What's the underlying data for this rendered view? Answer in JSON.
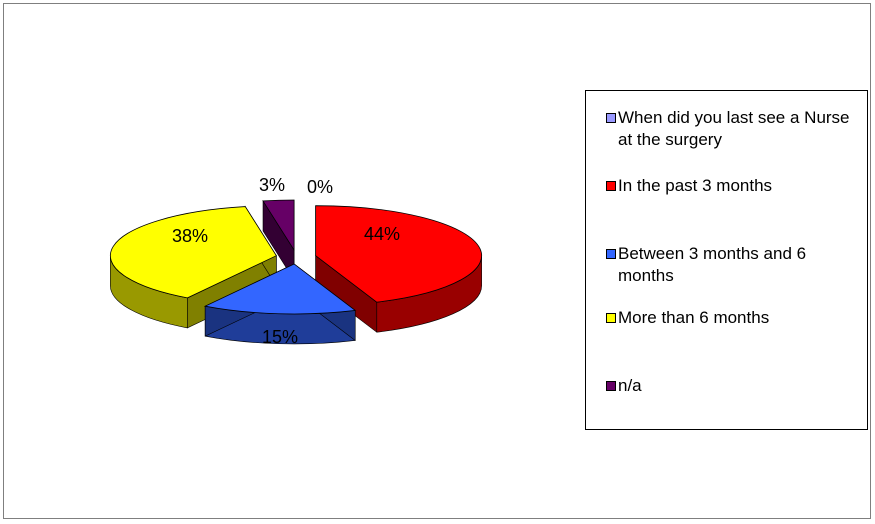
{
  "chart_data": {
    "type": "pie",
    "style": "3d-exploded",
    "slices": [
      {
        "label": "When did you last see a Nurse at the surgery",
        "value": 0,
        "display": "0%",
        "color": "#9999ff"
      },
      {
        "label": "In the past 3 months",
        "value": 44,
        "display": "44%",
        "color": "#ff0000"
      },
      {
        "label": "Between 3 months and 6 months",
        "value": 15,
        "display": "15%",
        "color": "#3366ff"
      },
      {
        "label": "More than 6 months",
        "value": 38,
        "display": "38%",
        "color": "#ffff00"
      },
      {
        "label": "n/a",
        "value": 3,
        "display": "3%",
        "color": "#660066"
      }
    ],
    "legend_position": "right"
  }
}
